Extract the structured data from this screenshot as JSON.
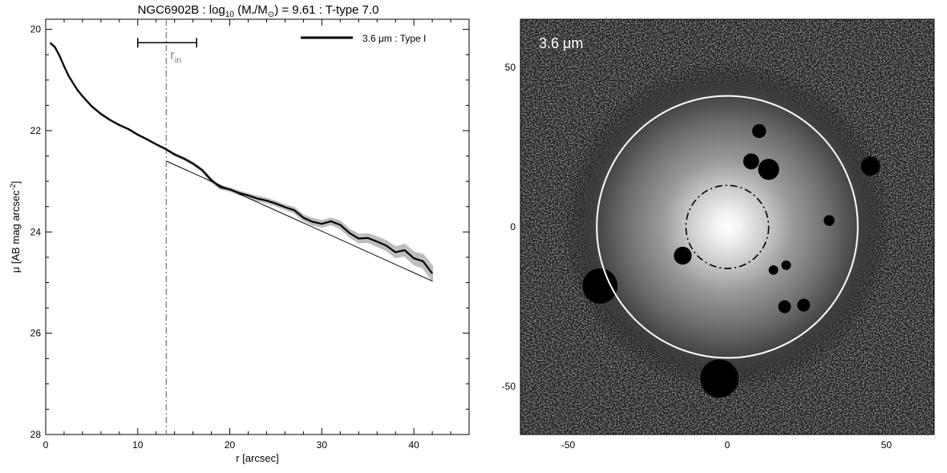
{
  "chart_data": [
    {
      "type": "line",
      "title": {
        "prefix": "NGC6902B : log",
        "log_base": "10",
        "mid": " (M",
        "star_sub": "*",
        "slash": "/M",
        "sun_sub": "⊙",
        "suffix": ") = 9.61 : T-type 7.0"
      },
      "xlabel": "r [arcsec]",
      "ylabel": {
        "text": "μ [AB mag arcsec",
        "sup": "-2",
        "close": "]"
      },
      "xlim": [
        0,
        46
      ],
      "ylim": [
        28,
        19.8
      ],
      "x_ticks": [
        0,
        10,
        20,
        30,
        40
      ],
      "y_ticks": [
        20,
        22,
        24,
        26,
        28
      ],
      "grid": false,
      "legend": {
        "position": "top-right",
        "label": "3.6 μm : Type I",
        "color": "#000000"
      },
      "series": [
        {
          "name": "3.6 μm : Type I",
          "color": "#000000",
          "error_band_color": "#bdbdbd",
          "x": [
            0.5,
            1,
            1.5,
            2,
            2.5,
            3,
            3.5,
            4,
            5,
            6,
            7,
            8,
            9,
            10,
            11,
            12,
            13,
            14,
            15,
            16,
            17,
            18,
            19,
            20,
            21,
            22,
            23,
            24,
            25,
            26,
            27,
            28,
            29,
            30,
            31,
            32,
            33,
            34,
            35,
            36,
            37,
            38,
            39,
            40,
            41,
            42
          ],
          "y": [
            20.27,
            20.35,
            20.52,
            20.73,
            20.92,
            21.07,
            21.21,
            21.32,
            21.52,
            21.67,
            21.79,
            21.89,
            21.97,
            22.08,
            22.17,
            22.27,
            22.36,
            22.47,
            22.55,
            22.65,
            22.78,
            22.98,
            23.12,
            23.16,
            23.23,
            23.28,
            23.34,
            23.38,
            23.44,
            23.51,
            23.57,
            23.72,
            23.8,
            23.84,
            23.79,
            23.86,
            24.02,
            24.13,
            24.12,
            24.19,
            24.27,
            24.4,
            24.36,
            24.52,
            24.58,
            24.82
          ],
          "band_halfwidth": [
            0.01,
            0.01,
            0.01,
            0.01,
            0.01,
            0.01,
            0.01,
            0.01,
            0.01,
            0.01,
            0.01,
            0.01,
            0.01,
            0.01,
            0.01,
            0.01,
            0.01,
            0.02,
            0.02,
            0.02,
            0.02,
            0.03,
            0.03,
            0.03,
            0.03,
            0.03,
            0.04,
            0.04,
            0.04,
            0.04,
            0.05,
            0.05,
            0.06,
            0.06,
            0.06,
            0.07,
            0.07,
            0.08,
            0.08,
            0.09,
            0.09,
            0.1,
            0.11,
            0.12,
            0.13,
            0.14
          ]
        },
        {
          "color": "#000000",
          "x": [
            13.1,
            42
          ],
          "y": [
            22.6,
            24.97
          ]
        }
      ],
      "annotations": {
        "r_in": {
          "label": "r",
          "sub": "in",
          "color": "#808080",
          "x": 13.1,
          "error_bar": [
            10,
            16.4
          ],
          "error_bar_y": 20.2
        }
      }
    },
    {
      "type": "image",
      "label": "3.6 μm",
      "xlim": [
        -65,
        65
      ],
      "ylim": [
        -65,
        65
      ],
      "x_ticks": [
        -50,
        0,
        50
      ],
      "y_ticks": [
        -50,
        0,
        50
      ],
      "ellipse_outer": {
        "cx": 0,
        "cy": 0,
        "r": 41,
        "color": "#ffffff"
      },
      "ellipse_inner": {
        "cx": 0,
        "cy": 0,
        "r": 13,
        "color": "#000000",
        "style": "dash-dot"
      },
      "masks": [
        {
          "x": 10,
          "y": 30,
          "r": 2.2
        },
        {
          "x": 7.5,
          "y": 20.5,
          "r": 2.5
        },
        {
          "x": 13,
          "y": 18,
          "r": 3.3
        },
        {
          "x": -14,
          "y": -9,
          "r": 2.8
        },
        {
          "x": 32,
          "y": 2,
          "r": 1.7
        },
        {
          "x": 18.5,
          "y": -12,
          "r": 1.5
        },
        {
          "x": 14.5,
          "y": -13.5,
          "r": 1.5
        },
        {
          "x": 18,
          "y": -25,
          "r": 2.0
        },
        {
          "x": 24,
          "y": -24.5,
          "r": 2.0
        },
        {
          "x": -40,
          "y": -18.5,
          "r": 5.5
        },
        {
          "x": -2.5,
          "y": -47.5,
          "r": 6.0
        },
        {
          "x": 45,
          "y": 19,
          "r": 3.0
        }
      ]
    }
  ]
}
